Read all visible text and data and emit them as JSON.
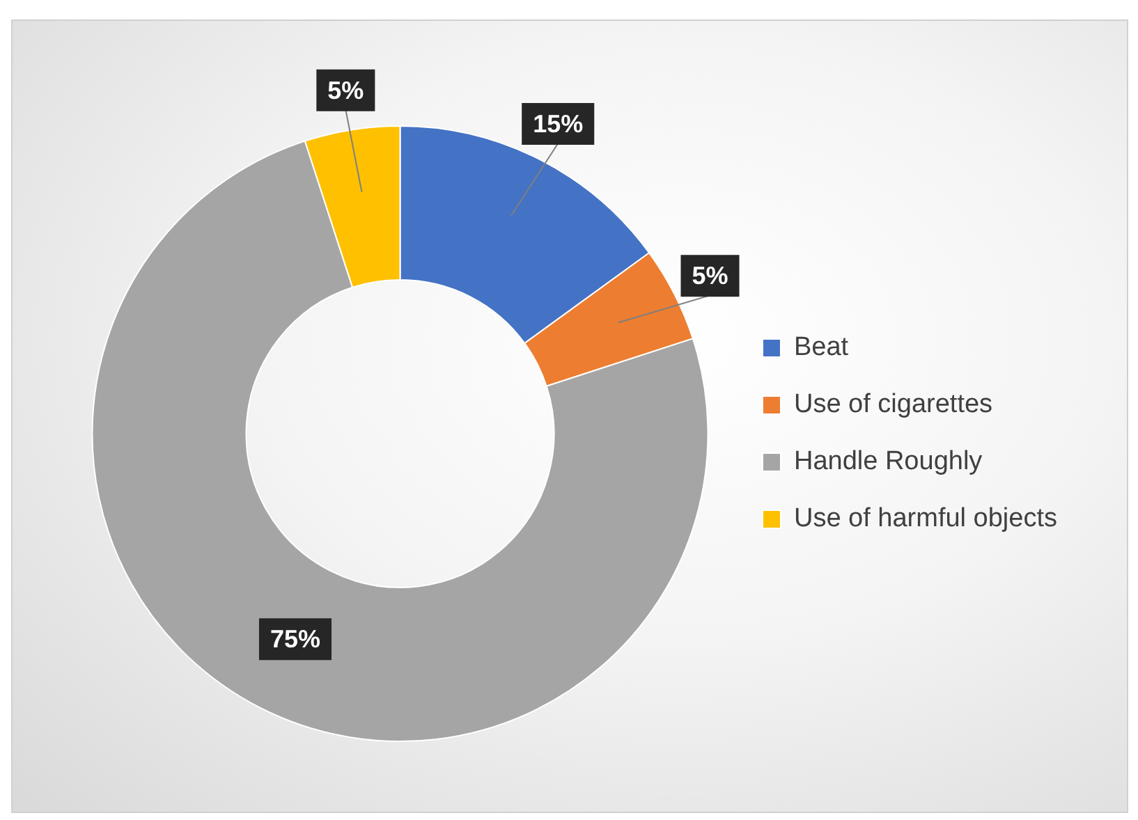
{
  "chart_data": {
    "type": "donut",
    "categories": [
      "Beat",
      "Use of cigarettes",
      "Handle Roughly",
      "Use of harmful objects"
    ],
    "values": [
      15,
      5,
      75,
      5
    ],
    "colors": [
      "#4472c4",
      "#ed7d31",
      "#a5a5a5",
      "#ffc000"
    ],
    "value_labels": [
      "15%",
      "5%",
      "75%",
      "5%"
    ],
    "legend": "right"
  }
}
